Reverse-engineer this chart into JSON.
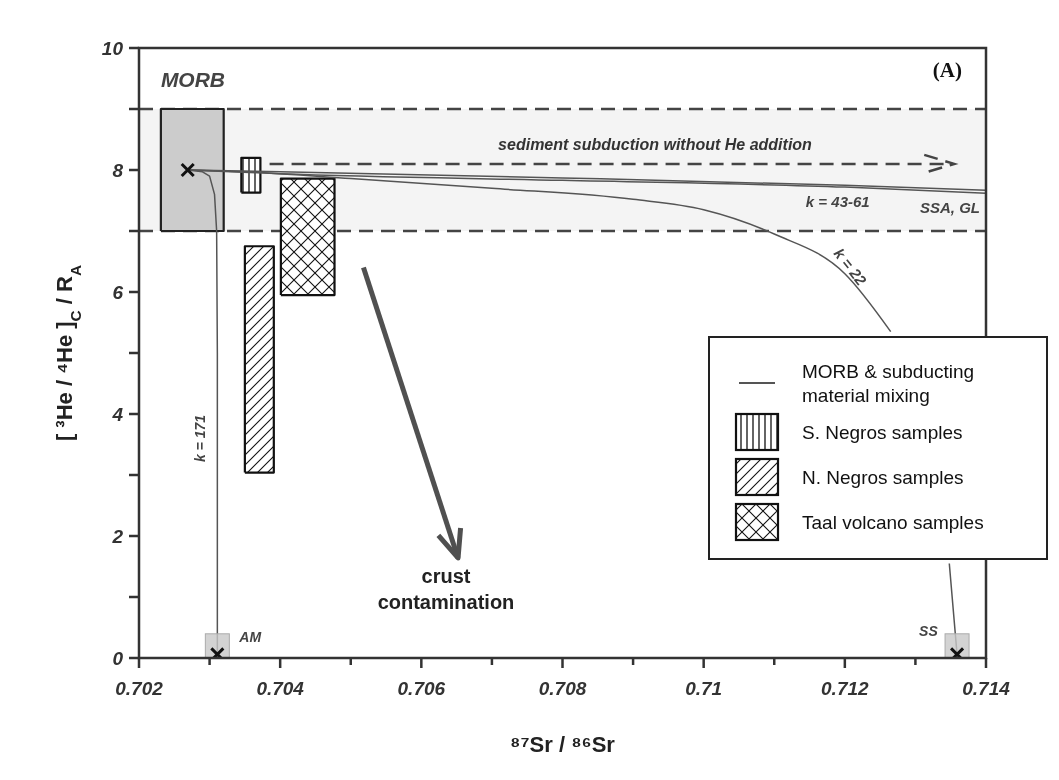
{
  "chart_data": {
    "type": "line",
    "xlabel": "⁸⁷Sr / ⁸⁶Sr",
    "ylabel": "[ ³He / ⁴He ]$_{C}$ / R$_{A}$",
    "xlim": [
      0.702,
      0.714
    ],
    "xticks": [
      0.702,
      {
        "value": 0.703,
        "label": null
      },
      0.704,
      {
        "value": 0.705,
        "label": null
      },
      0.706,
      {
        "value": 0.707,
        "label": null
      },
      0.708,
      {
        "value": 0.709,
        "label": null
      },
      0.71,
      {
        "value": 0.711,
        "label": null
      },
      0.712,
      {
        "value": 0.713,
        "label": null
      },
      0.714
    ],
    "ylim": [
      0,
      10
    ],
    "yticks": [
      0,
      {
        "value": 1,
        "label": null
      },
      2,
      {
        "value": 3,
        "label": null
      },
      4,
      {
        "value": 5,
        "label": null
      },
      6,
      {
        "value": 7,
        "label": null
      },
      8,
      {
        "value": 9,
        "label": null
      },
      10
    ],
    "grid": false,
    "legend": "right",
    "bands": [
      {
        "axis": "y",
        "from": 7,
        "to": 9,
        "color": "#f4f4f4"
      }
    ],
    "ref_lines": [
      {
        "axis": "y",
        "value": 9,
        "color": "#444444",
        "line_style": "dashed"
      },
      {
        "axis": "y",
        "value": 7,
        "color": "#444444",
        "line_style": "dashed"
      }
    ],
    "annotations": [
      "(A)",
      "sediment subduction without He addition",
      "crust contamination",
      {
        "text": "MORB",
        "x": 0.70231,
        "y": 9
      },
      {
        "text": "k = 171",
        "x": 0.70311,
        "y": 3.6
      },
      {
        "text": "AM",
        "x": 0.70311,
        "y": 0.06
      },
      {
        "text": "SS",
        "x": 0.71359,
        "y": 0.06
      },
      "k = 22",
      {
        "text": "k = 43-61",
        "x": 0.7119,
        "y": 7.72
      },
      {
        "text": "SSA, GL",
        "x": 0.714,
        "y": 7.62
      }
    ],
    "series": [
      {
        "name": "MORB & subducting material mixing",
        "color": "#555555",
        "x": [
          0.70269,
          0.7035,
          0.705,
          0.707,
          0.709,
          0.71,
          0.711,
          0.712,
          0.71265,
          0.713,
          0.71348,
          0.71359
        ],
        "values": [
          8,
          7.97,
          7.86,
          7.7,
          7.52,
          7.35,
          6.95,
          6.3,
          5.35,
          null,
          1.55,
          0.06
        ]
      },
      {
        "type": "area",
        "name": "S. Negros samples",
        "color": "#111111",
        "x": [
          0.70345,
          0.70345,
          0.70372,
          0.70372,
          0.70345
        ],
        "values": [
          7.63,
          8.2,
          8.2,
          7.63,
          7.63
        ]
      },
      {
        "type": "area",
        "name": "N. Negros samples",
        "color": "#111111",
        "x": [
          0.7035,
          0.7035,
          0.70391,
          0.70391,
          0.7035
        ],
        "values": [
          3.04,
          6.75,
          6.75,
          3.04,
          3.04
        ]
      },
      {
        "type": "area",
        "name": "Taal volcano samples",
        "color": "#111111",
        "x": [
          0.70401,
          0.70401,
          0.70477,
          0.70477,
          0.70401
        ],
        "values": [
          5.95,
          7.86,
          7.86,
          5.95,
          5.95
        ]
      },
      {
        "type": "area",
        "color": "#cccccc",
        "x": [
          0.70231,
          0.70231,
          0.7032,
          0.7032,
          0.70231
        ],
        "values": [
          7,
          9,
          9,
          7,
          7
        ]
      },
      {
        "color": "#555555",
        "x": [
          0.70269,
          0.7029,
          0.703,
          0.70307,
          0.7031,
          0.70311,
          0.70311
        ],
        "values": [
          8,
          7.97,
          7.9,
          7.6,
          7,
          5,
          0.06
        ]
      },
      {
        "color": "#555555",
        "x": [
          0.70269,
          0.704,
          0.708,
          0.712,
          0.714
        ],
        "values": [
          8,
          7.97,
          7.87,
          7.75,
          7.67
        ]
      },
      {
        "color": "#555555",
        "x": [
          0.70269,
          0.704,
          0.708,
          0.712,
          0.714
        ],
        "values": [
          8,
          7.94,
          7.83,
          7.72,
          7.62
        ]
      },
      {
        "type": "scatter",
        "color": "#c8c8c8",
        "marker": "square",
        "x": [
          0.70311,
          0.71359
        ],
        "values": [
          0.2,
          0.2
        ]
      },
      {
        "type": "scatter",
        "color": "#111111",
        "marker": "cross",
        "x": [
          0.70269,
          0.70311,
          0.71359
        ],
        "values": [
          8,
          0.06,
          0.06
        ]
      }
    ]
  }
}
